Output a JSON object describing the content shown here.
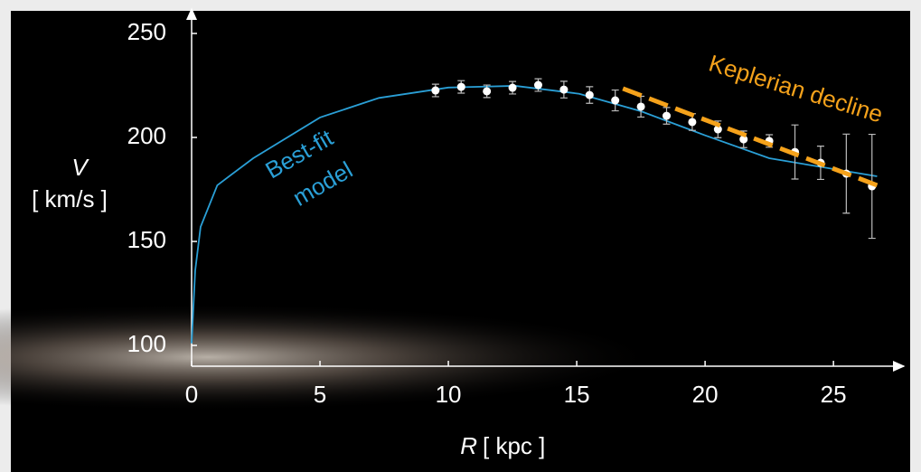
{
  "chart_data": {
    "type": "scatter",
    "xlim": [
      0,
      27.6
    ],
    "ylim": [
      90,
      260
    ],
    "xticks": [
      0,
      5,
      10,
      15,
      20,
      25
    ],
    "yticks": [
      100,
      150,
      200,
      250
    ],
    "xlabel": [
      "R",
      "[ kpc ]"
    ],
    "ylabel": [
      "V",
      "[ km/s ]"
    ],
    "annotations": [
      "Best-fit",
      "model",
      "Keplerian decline"
    ],
    "series": [
      {
        "type": "line",
        "color": "#2a9fd6",
        "x": [
          0,
          0.14,
          0.35,
          1,
          2.4,
          5,
          7.3,
          10,
          12.6,
          15.1,
          17.5,
          20,
          22.5,
          26.7
        ],
        "values": [
          101,
          136,
          157,
          177,
          190,
          209.6,
          219,
          224,
          224.8,
          221,
          212.6,
          201,
          190,
          181.3
        ]
      },
      {
        "type": "scatter",
        "color": "#ffffff",
        "x": [
          9.5,
          10.5,
          11.5,
          12.5,
          13.5,
          14.5,
          15.5,
          16.5,
          17.5,
          18.5,
          19.5,
          20.5,
          21.5,
          22.5,
          23.5,
          24.5,
          25.5,
          26.5
        ],
        "values": [
          222.6,
          224.3,
          222.2,
          223.9,
          225.2,
          223,
          220.4,
          217.8,
          214.8,
          210.4,
          207.4,
          203.9,
          199.1,
          198.3,
          193,
          187.8,
          182.6,
          176.5
        ],
        "errors": [
          3,
          3,
          3,
          3,
          3,
          4,
          4,
          5,
          5,
          4,
          4,
          4,
          4,
          3,
          13,
          8,
          19,
          25
        ]
      },
      {
        "type": "line",
        "dashed": true,
        "color": "#f5a21b",
        "x": [
          16.8,
          26.7
        ],
        "values": [
          223.5,
          177
        ]
      }
    ]
  }
}
